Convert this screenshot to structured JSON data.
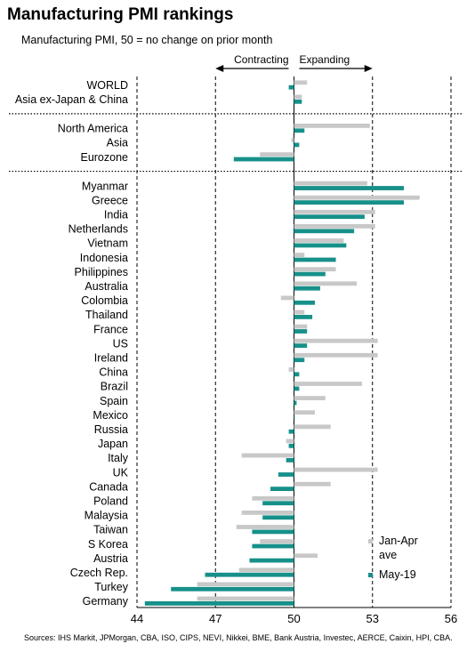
{
  "title": "Manufacturing PMI rankings",
  "subtitle": "Manufacturing PMI, 50 = no change on prior month",
  "source": "Sources: IHS Markit, JPMorgan, CBA, ISO, CIPS, NEVI, Nikkei, BME, Bank Austria, Investec, AERCE, Caixin, HPI, CBA.",
  "colors": {
    "jan_apr": "#c8c8c8",
    "may": "#17908a"
  },
  "chart_data": {
    "type": "bar",
    "orientation": "horizontal",
    "baseline": 50,
    "xlim": [
      44,
      56
    ],
    "xticks": [
      44,
      47,
      50,
      53,
      56
    ],
    "annotations": {
      "left": "Contracting",
      "right": "Expanding"
    },
    "categories": [
      "WORLD",
      "Asia ex-Japan & China",
      "North America",
      "Asia",
      "Eurozone",
      "Myanmar",
      "Greece",
      "India",
      "Netherlands",
      "Vietnam",
      "Indonesia",
      "Philippines",
      "Australia",
      "Colombia",
      "Thailand",
      "France",
      "US",
      "Ireland",
      "China",
      "Brazil",
      "Spain",
      "Mexico",
      "Russia",
      "Japan",
      "Italy",
      "UK",
      "Canada",
      "Poland",
      "Malaysia",
      "Taiwan",
      "S Korea",
      "Austria",
      "Czech Rep.",
      "Turkey",
      "Germany"
    ],
    "groups": [
      1,
      4
    ],
    "series": [
      {
        "name": "Jan-Apr ave",
        "color": "#c8c8c8",
        "values": [
          50.5,
          50.3,
          52.9,
          49.9,
          48.7,
          52.8,
          54.8,
          53.1,
          53.1,
          51.9,
          50.4,
          51.6,
          52.4,
          49.5,
          50.4,
          50.5,
          53.2,
          53.2,
          49.8,
          52.6,
          51.2,
          50.8,
          51.4,
          49.7,
          48.0,
          53.2,
          51.4,
          48.4,
          48.0,
          47.8,
          48.7,
          50.9,
          47.9,
          46.3,
          46.3
        ]
      },
      {
        "name": "May-19",
        "color": "#17908a",
        "values": [
          49.8,
          50.3,
          50.4,
          50.2,
          47.7,
          54.2,
          54.2,
          52.7,
          52.3,
          52.0,
          51.6,
          51.2,
          51.0,
          50.8,
          50.7,
          50.5,
          50.5,
          50.4,
          50.2,
          50.2,
          50.1,
          50.0,
          49.8,
          49.8,
          49.7,
          49.4,
          49.1,
          48.8,
          48.8,
          48.4,
          48.4,
          48.3,
          46.6,
          45.3,
          44.3
        ]
      }
    ]
  }
}
